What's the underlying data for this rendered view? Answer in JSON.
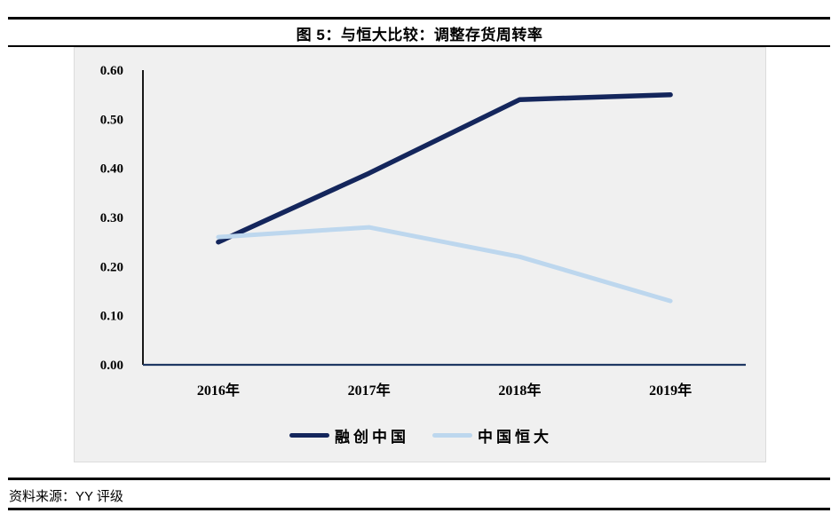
{
  "figure": {
    "title": "图 5：与恒大比较：调整存货周转率"
  },
  "source": {
    "label": "资料来源：YY 评级"
  },
  "chart_data": {
    "type": "line",
    "title": "图 5：与恒大比较：调整存货周转率",
    "categories": [
      "2016年",
      "2017年",
      "2018年",
      "2019年"
    ],
    "series": [
      {
        "name": "融创中国",
        "color": "#14265c",
        "values": [
          0.25,
          0.39,
          0.54,
          0.55
        ]
      },
      {
        "name": "中国恒大",
        "color": "#bdd7ee",
        "values": [
          0.26,
          0.28,
          0.22,
          0.13
        ]
      }
    ],
    "xlabel": "",
    "ylabel": "",
    "ylim": [
      0,
      0.6
    ],
    "y_tick_step": 0.1,
    "y_tick_labels": [
      "0.00",
      "0.10",
      "0.20",
      "0.30",
      "0.40",
      "0.50",
      "0.60"
    ],
    "grid": "off",
    "legend_position": "bottom",
    "plot_bg": "#f0f0f0",
    "axis_color": "#1f3864",
    "y_axis_color": "#000000"
  }
}
